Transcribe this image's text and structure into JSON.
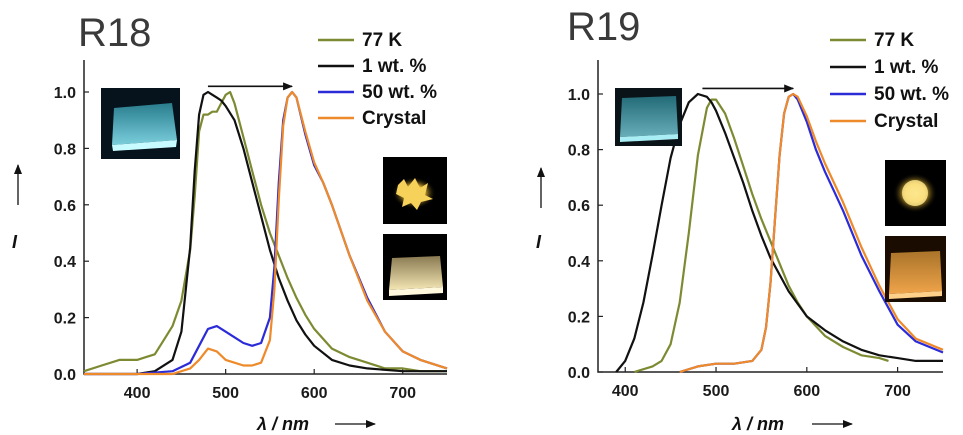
{
  "figure": {
    "background": "#ffffff",
    "photo_icons": [
      "blue-glowing-film-photo",
      "yellow-crystals-photo",
      "yellow-film-photo"
    ]
  },
  "chart_data": [
    {
      "type": "line",
      "title": "R18",
      "xlabel": "λ / nm",
      "ylabel": "I",
      "xlim": [
        340,
        750
      ],
      "ylim": [
        0,
        1.05
      ],
      "xticks": [
        400,
        500,
        600,
        700
      ],
      "yticks": [
        0.0,
        0.2,
        0.4,
        0.6,
        0.8,
        1.0
      ],
      "grid": false,
      "legend_position": "top-right",
      "arrow": {
        "from": [
          480,
          1.02
        ],
        "to": [
          575,
          1.02
        ]
      },
      "series": [
        {
          "name": "77 K",
          "color": "#7e8a32",
          "x": [
            340,
            360,
            380,
            400,
            410,
            420,
            430,
            440,
            450,
            460,
            465,
            470,
            475,
            480,
            485,
            490,
            495,
            500,
            505,
            510,
            520,
            530,
            540,
            550,
            560,
            570,
            580,
            590,
            600,
            620,
            640,
            660,
            680,
            700,
            720,
            750
          ],
          "y": [
            0.01,
            0.03,
            0.05,
            0.05,
            0.06,
            0.07,
            0.12,
            0.17,
            0.26,
            0.44,
            0.63,
            0.86,
            0.92,
            0.92,
            0.93,
            0.93,
            0.96,
            0.99,
            1.0,
            0.96,
            0.84,
            0.72,
            0.6,
            0.5,
            0.42,
            0.34,
            0.27,
            0.21,
            0.16,
            0.09,
            0.06,
            0.04,
            0.02,
            0.02,
            0.01,
            0.01
          ]
        },
        {
          "name": "1 wt. %",
          "color": "#111111",
          "x": [
            340,
            400,
            420,
            440,
            450,
            460,
            465,
            470,
            475,
            480,
            485,
            490,
            495,
            500,
            510,
            520,
            530,
            540,
            550,
            560,
            570,
            580,
            590,
            600,
            620,
            640,
            660,
            700,
            750
          ],
          "y": [
            0.0,
            0.0,
            0.01,
            0.05,
            0.15,
            0.45,
            0.72,
            0.92,
            0.99,
            1.0,
            0.99,
            0.98,
            0.97,
            0.95,
            0.9,
            0.8,
            0.68,
            0.56,
            0.44,
            0.34,
            0.26,
            0.19,
            0.14,
            0.1,
            0.05,
            0.03,
            0.02,
            0.01,
            0.01
          ]
        },
        {
          "name": "50 wt. %",
          "color": "#2b2bd8",
          "x": [
            340,
            400,
            440,
            460,
            470,
            480,
            490,
            500,
            510,
            520,
            530,
            540,
            550,
            555,
            560,
            565,
            570,
            575,
            580,
            590,
            600,
            610,
            620,
            640,
            660,
            680,
            700,
            720,
            750
          ],
          "y": [
            0.0,
            0.0,
            0.01,
            0.04,
            0.1,
            0.16,
            0.17,
            0.15,
            0.13,
            0.11,
            0.1,
            0.11,
            0.2,
            0.38,
            0.68,
            0.9,
            0.98,
            1.0,
            0.98,
            0.85,
            0.74,
            0.68,
            0.6,
            0.42,
            0.27,
            0.15,
            0.08,
            0.05,
            0.02
          ]
        },
        {
          "name": "Crystal",
          "color": "#ee8a2a",
          "x": [
            340,
            400,
            440,
            460,
            470,
            480,
            490,
            500,
            510,
            520,
            530,
            540,
            550,
            555,
            560,
            565,
            570,
            575,
            580,
            590,
            600,
            610,
            620,
            640,
            660,
            680,
            700,
            720,
            750
          ],
          "y": [
            0.0,
            0.0,
            0.0,
            0.02,
            0.05,
            0.09,
            0.08,
            0.05,
            0.04,
            0.03,
            0.03,
            0.04,
            0.12,
            0.3,
            0.62,
            0.88,
            0.98,
            1.0,
            0.98,
            0.86,
            0.75,
            0.68,
            0.6,
            0.42,
            0.26,
            0.15,
            0.08,
            0.05,
            0.02
          ]
        }
      ]
    },
    {
      "type": "line",
      "title": "R19",
      "xlabel": "λ / nm",
      "ylabel": "I",
      "xlim": [
        370,
        750
      ],
      "ylim": [
        0,
        1.05
      ],
      "xticks": [
        400,
        500,
        600,
        700
      ],
      "yticks": [
        0.0,
        0.2,
        0.4,
        0.6,
        0.8,
        1.0
      ],
      "grid": false,
      "legend_position": "top-right",
      "arrow": {
        "from": [
          485,
          1.02
        ],
        "to": [
          585,
          1.02
        ]
      },
      "series": [
        {
          "name": "77 K",
          "color": "#7e8a32",
          "x": [
            410,
            430,
            440,
            450,
            460,
            470,
            480,
            490,
            495,
            500,
            510,
            520,
            530,
            540,
            550,
            560,
            570,
            580,
            590,
            600,
            620,
            640,
            660,
            680,
            690
          ],
          "y": [
            0.0,
            0.02,
            0.04,
            0.1,
            0.25,
            0.5,
            0.78,
            0.95,
            0.98,
            0.98,
            0.93,
            0.84,
            0.74,
            0.64,
            0.55,
            0.47,
            0.39,
            0.31,
            0.25,
            0.2,
            0.13,
            0.09,
            0.06,
            0.05,
            0.04
          ]
        },
        {
          "name": "1 wt. %",
          "color": "#111111",
          "x": [
            390,
            400,
            410,
            420,
            430,
            440,
            450,
            460,
            470,
            480,
            490,
            495,
            500,
            510,
            520,
            530,
            540,
            550,
            560,
            580,
            600,
            620,
            640,
            660,
            680,
            700,
            720,
            750
          ],
          "y": [
            0.0,
            0.04,
            0.12,
            0.25,
            0.42,
            0.6,
            0.77,
            0.89,
            0.97,
            1.0,
            0.99,
            0.97,
            0.94,
            0.86,
            0.77,
            0.68,
            0.58,
            0.49,
            0.41,
            0.29,
            0.2,
            0.15,
            0.11,
            0.08,
            0.06,
            0.05,
            0.04,
            0.04
          ]
        },
        {
          "name": "50 wt. %",
          "color": "#2b2bd8",
          "x": [
            460,
            480,
            500,
            520,
            540,
            550,
            555,
            560,
            565,
            570,
            575,
            580,
            585,
            590,
            600,
            610,
            620,
            630,
            640,
            660,
            680,
            700,
            720,
            750
          ],
          "y": [
            0.0,
            0.02,
            0.03,
            0.03,
            0.04,
            0.08,
            0.16,
            0.32,
            0.55,
            0.78,
            0.93,
            0.99,
            1.0,
            0.98,
            0.9,
            0.8,
            0.72,
            0.65,
            0.58,
            0.42,
            0.29,
            0.17,
            0.11,
            0.07
          ]
        },
        {
          "name": "Crystal",
          "color": "#ee8a2a",
          "x": [
            460,
            480,
            500,
            520,
            540,
            550,
            555,
            560,
            565,
            570,
            575,
            580,
            585,
            590,
            600,
            610,
            620,
            630,
            640,
            660,
            680,
            700,
            720,
            750
          ],
          "y": [
            0.0,
            0.02,
            0.03,
            0.03,
            0.04,
            0.08,
            0.16,
            0.32,
            0.55,
            0.78,
            0.93,
            0.99,
            1.0,
            0.99,
            0.92,
            0.83,
            0.75,
            0.68,
            0.61,
            0.45,
            0.31,
            0.19,
            0.12,
            0.08
          ]
        }
      ]
    }
  ]
}
